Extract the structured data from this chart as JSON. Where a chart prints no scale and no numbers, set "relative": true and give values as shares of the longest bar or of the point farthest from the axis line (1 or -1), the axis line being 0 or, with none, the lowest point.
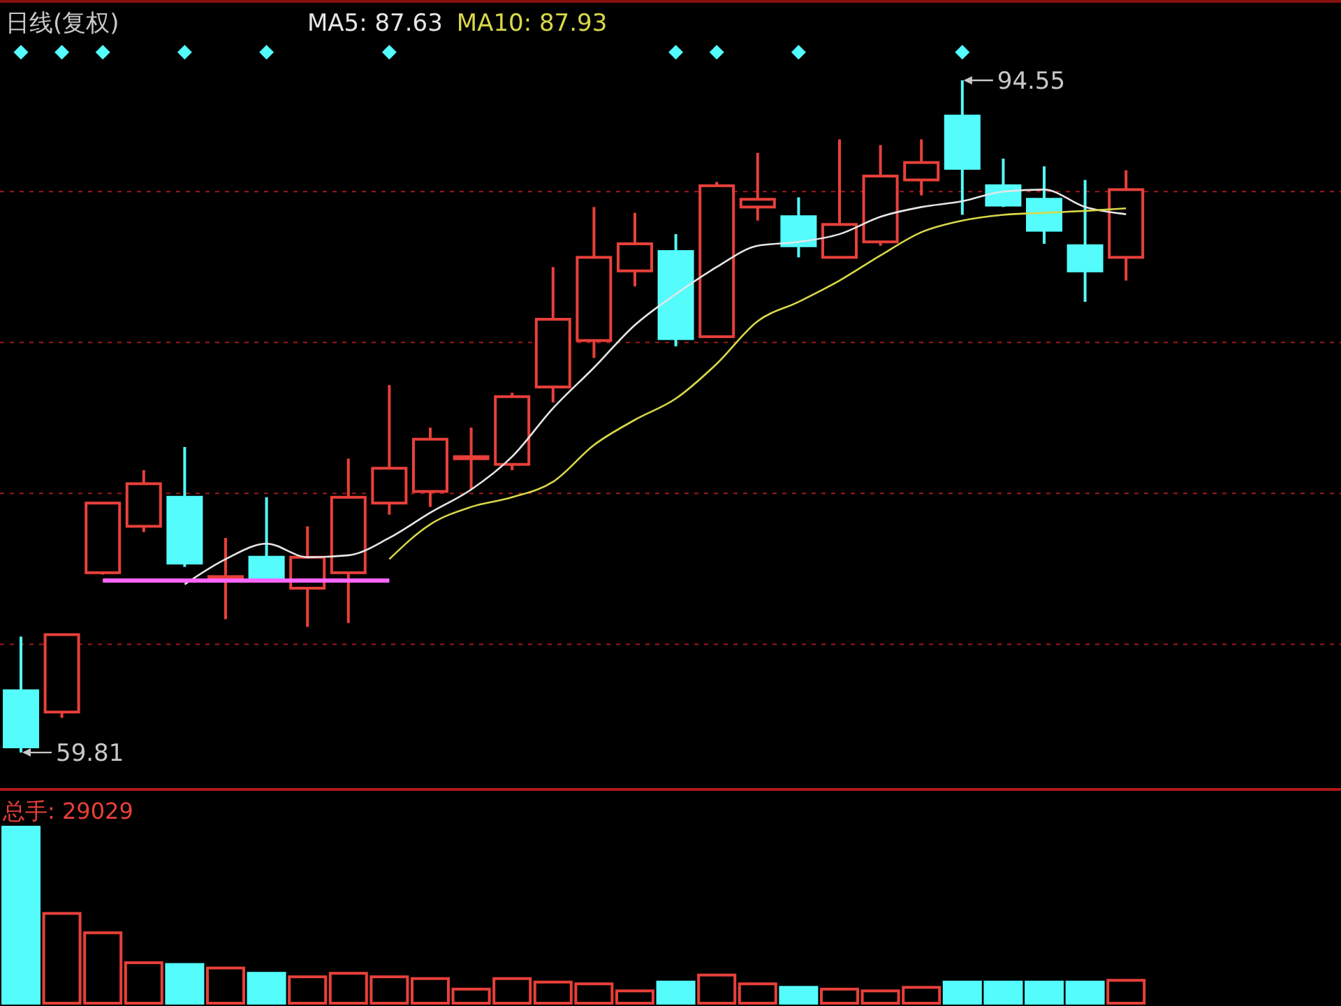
{
  "chart_data": [
    {
      "type": "candlestick",
      "title": "日线(复权)",
      "categories": [
        null,
        null,
        null,
        null,
        null,
        null,
        null,
        null,
        null,
        null,
        null,
        null,
        null,
        null,
        null,
        null,
        null,
        null,
        null,
        null,
        null,
        null,
        null,
        null,
        null,
        null,
        null,
        null
      ],
      "ohlc": [
        [
          63.0,
          65.8,
          59.81,
          60.1
        ],
        [
          61.9,
          65.9,
          61.6,
          65.9
        ],
        [
          69.1,
          72.7,
          69.0,
          72.7
        ],
        [
          71.5,
          74.4,
          71.2,
          73.7
        ],
        [
          73.0,
          75.6,
          69.4,
          69.6
        ],
        [
          68.8,
          70.9,
          66.7,
          68.9
        ],
        [
          69.9,
          73.0,
          68.7,
          68.8
        ],
        [
          68.3,
          71.5,
          66.3,
          69.9
        ],
        [
          69.1,
          75.0,
          66.5,
          73.0
        ],
        [
          72.7,
          78.8,
          72.1,
          74.5
        ],
        [
          73.3,
          76.6,
          72.5,
          76.0
        ],
        [
          75.0,
          76.6,
          73.4,
          75.1
        ],
        [
          74.7,
          78.4,
          74.4,
          78.2
        ],
        [
          78.7,
          84.9,
          77.9,
          82.2
        ],
        [
          81.1,
          88.0,
          80.2,
          85.4
        ],
        [
          84.7,
          87.7,
          83.9,
          86.1
        ],
        [
          85.7,
          86.6,
          80.8,
          81.2
        ],
        [
          81.3,
          89.3,
          81.3,
          89.1
        ],
        [
          88.0,
          90.8,
          87.3,
          88.4
        ],
        [
          87.5,
          88.5,
          85.4,
          86.0
        ],
        [
          85.4,
          91.5,
          85.4,
          87.1
        ],
        [
          86.2,
          91.2,
          86.0,
          89.6
        ],
        [
          89.4,
          91.5,
          88.6,
          90.3
        ],
        [
          92.7,
          94.55,
          87.6,
          90.0
        ],
        [
          89.1,
          90.5,
          88.0,
          88.1
        ],
        [
          88.4,
          90.1,
          86.1,
          86.8
        ],
        [
          86.0,
          89.4,
          83.1,
          84.7
        ],
        [
          85.4,
          89.9,
          84.2,
          88.9
        ]
      ],
      "colors": [
        "#54fcfc",
        "#e8403a",
        "#e8403a",
        "#e8403a",
        "#54fcfc",
        "#e8403a",
        "#54fcfc",
        "#e8403a",
        "#e8403a",
        "#e8403a",
        "#e8403a",
        "#e8403a",
        "#e8403a",
        "#e8403a",
        "#e8403a",
        "#e8403a",
        "#54fcfc",
        "#e8403a",
        "#e8403a",
        "#54fcfc",
        "#e8403a",
        "#e8403a",
        "#e8403a",
        "#54fcfc",
        "#54fcfc",
        "#54fcfc",
        "#54fcfc",
        "#e8403a"
      ],
      "series": [
        {
          "name": "MA5: 87.63",
          "type": "line",
          "color": "#e6e6e6",
          "values": [
            null,
            null,
            null,
            null,
            68.5,
            69.8,
            70.6,
            69.9,
            70.0,
            70.9,
            72.2,
            73.4,
            75.1,
            77.6,
            79.7,
            81.9,
            83.5,
            84.9,
            86.0,
            86.2,
            86.6,
            87.5,
            88.0,
            88.3,
            88.8,
            88.9,
            88.0,
            87.63
          ]
        },
        {
          "name": "MA10: 87.93",
          "type": "line",
          "color": "#d8d84a",
          "values": [
            null,
            null,
            null,
            null,
            null,
            null,
            null,
            null,
            null,
            69.8,
            71.6,
            72.5,
            73.0,
            73.8,
            75.7,
            77.0,
            78.1,
            79.9,
            82.1,
            83.1,
            84.2,
            85.5,
            86.7,
            87.3,
            87.6,
            87.7,
            87.8,
            87.93
          ]
        },
        {
          "type": "line",
          "color": "#ff66ff",
          "values": [
            null,
            null,
            68.7,
            68.7,
            68.7,
            68.7,
            68.7,
            68.7,
            68.7,
            68.7,
            null,
            null,
            null,
            null,
            null,
            null,
            null,
            null,
            null,
            null,
            null,
            null,
            null,
            null,
            null,
            null,
            null,
            null
          ]
        },
        {
          "type": "scatter",
          "marker": "diamond",
          "color": "#54fcfc",
          "values": [
            96.0,
            96.0,
            96.0,
            null,
            96.0,
            null,
            96.0,
            null,
            null,
            96.0,
            null,
            null,
            null,
            null,
            null,
            null,
            96.0,
            96.0,
            null,
            96.0,
            null,
            null,
            null,
            96.0,
            null,
            null,
            null,
            null
          ]
        }
      ],
      "yticks": [
        {
          "value": 65.4,
          "label": null
        },
        {
          "value": 73.2,
          "label": null
        },
        {
          "value": 81.0,
          "label": null
        },
        {
          "value": 88.8,
          "label": null
        }
      ],
      "ylim": [
        57.9,
        98.7
      ],
      "grid": "y",
      "annotations": [
        "94.55",
        "59.81"
      ]
    },
    {
      "type": "bar",
      "title": "总手: 29029",
      "relative": true,
      "categories": [
        null,
        null,
        null,
        null,
        null,
        null,
        null,
        null,
        null,
        null,
        null,
        null,
        null,
        null,
        null,
        null,
        null,
        null,
        null,
        null,
        null,
        null,
        null,
        null,
        null,
        null,
        null,
        null
      ],
      "values": [
        1,
        0.51,
        0.4,
        0.23,
        0.22,
        0.2,
        0.17,
        0.15,
        0.17,
        0.15,
        0.14,
        0.08,
        0.14,
        0.12,
        0.11,
        0.07,
        0.12,
        0.16,
        0.11,
        0.09,
        0.08,
        0.07,
        0.09,
        0.12,
        0.12,
        0.12,
        0.12,
        0.13
      ],
      "colors": [
        "#54fcfc",
        "#e8403a",
        "#e8403a",
        "#e8403a",
        "#54fcfc",
        "#e8403a",
        "#54fcfc",
        "#e8403a",
        "#e8403a",
        "#e8403a",
        "#e8403a",
        "#e8403a",
        "#e8403a",
        "#e8403a",
        "#e8403a",
        "#e8403a",
        "#54fcfc",
        "#e8403a",
        "#e8403a",
        "#54fcfc",
        "#e8403a",
        "#e8403a",
        "#e8403a",
        "#54fcfc",
        "#54fcfc",
        "#54fcfc",
        "#54fcfc",
        "#e8403a"
      ]
    }
  ]
}
